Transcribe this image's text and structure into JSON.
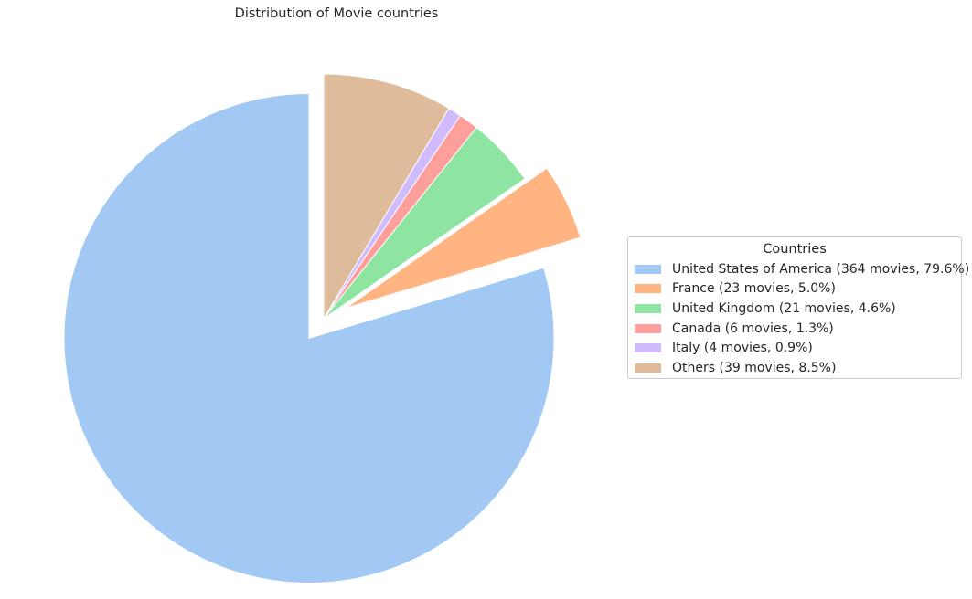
{
  "chart_data": {
    "type": "pie",
    "title": "Distribution of Movie countries",
    "legend_title": "Countries",
    "legend_position": "right",
    "slices": [
      {
        "label": "United States of America (364 movies, 79.6%)",
        "category": "United States of America",
        "movies": 364,
        "percent": 79.6,
        "color": "#a1c9f4",
        "exploded": true
      },
      {
        "label": "France (23 movies, 5.0%)",
        "category": "France",
        "movies": 23,
        "percent": 5.0,
        "color": "#ffb482",
        "exploded": true
      },
      {
        "label": "United Kingdom (21 movies, 4.6%)",
        "category": "United Kingdom",
        "movies": 21,
        "percent": 4.6,
        "color": "#8de5a1",
        "exploded": false
      },
      {
        "label": "Canada (6 movies, 1.3%)",
        "category": "Canada",
        "movies": 6,
        "percent": 1.3,
        "color": "#ff9f9b",
        "exploded": false
      },
      {
        "label": "Italy (4 movies, 0.9%)",
        "category": "Italy",
        "movies": 4,
        "percent": 0.9,
        "color": "#d0bbff",
        "exploded": false
      },
      {
        "label": "Others (39 movies, 8.5%)",
        "category": "Others",
        "movies": 39,
        "percent": 8.5,
        "color": "#debb9b",
        "exploded": false
      }
    ],
    "start_angle_deg": 90,
    "direction": "counterclockwise"
  }
}
